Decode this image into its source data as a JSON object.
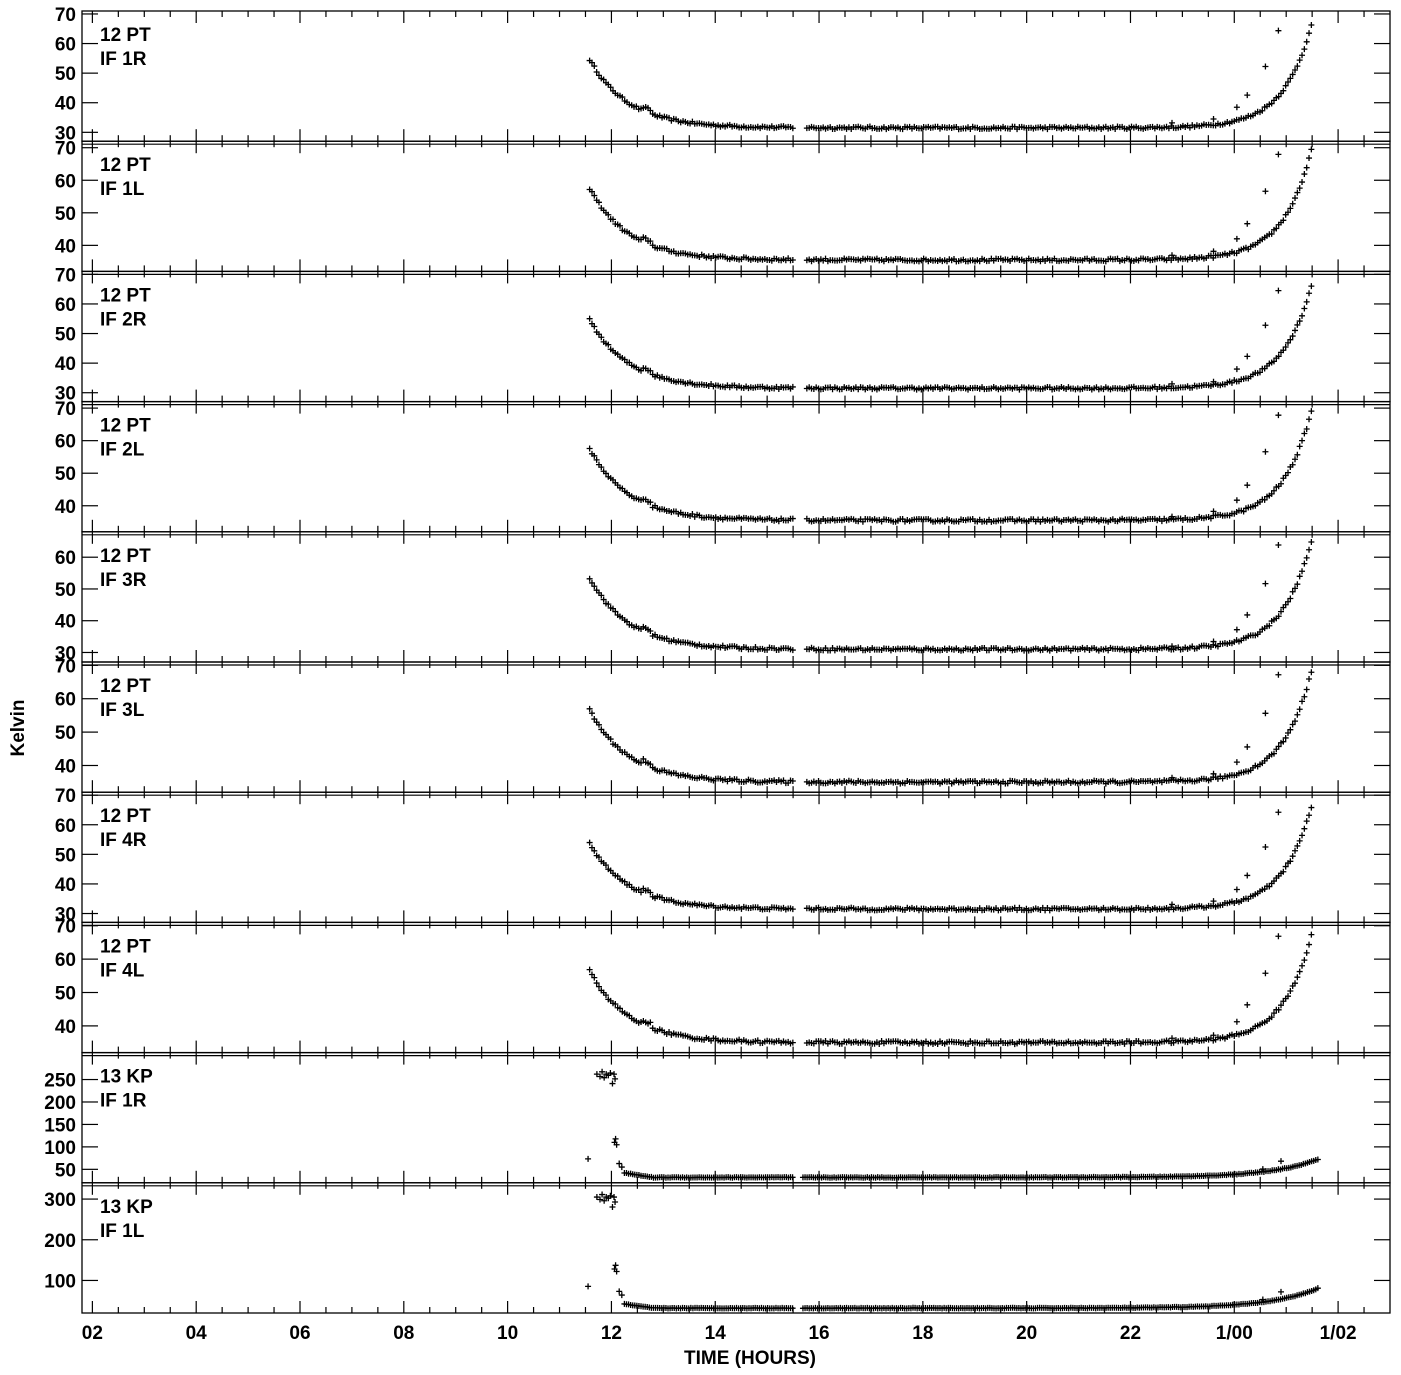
{
  "chart_data": {
    "type": "scatter",
    "title": "",
    "xlabel": "TIME (HOURS)",
    "ylabel": "Kelvin",
    "x_tick_labels": [
      "02",
      "04",
      "06",
      "08",
      "10",
      "12",
      "14",
      "16",
      "18",
      "20",
      "22",
      "1/00",
      "1/02"
    ],
    "x_tick_hours": [
      2,
      4,
      6,
      8,
      10,
      12,
      14,
      16,
      18,
      20,
      22,
      24,
      26
    ],
    "xlim": [
      1.8,
      27.0
    ],
    "marker": "plus",
    "panels": [
      {
        "line1": "12 PT",
        "line2": "IF 1R",
        "ylim": [
          27,
          71
        ],
        "yticks": [
          30,
          40,
          50,
          60,
          70
        ],
        "ytick_labels": [
          "30",
          "40",
          "50",
          "60",
          "70"
        ],
        "profile": "pt",
        "base": 31.5,
        "start": 54,
        "end": 67
      },
      {
        "line1": "12 PT",
        "line2": "IF 1L",
        "ylim": [
          32,
          72
        ],
        "yticks": [
          40,
          50,
          60,
          70
        ],
        "ytick_labels": [
          "40",
          "50",
          "60",
          "70"
        ],
        "profile": "pt",
        "base": 35.5,
        "start": 57,
        "end": 70
      },
      {
        "line1": "12 PT",
        "line2": "IF 2R",
        "ylim": [
          27,
          71
        ],
        "yticks": [
          30,
          40,
          50,
          60,
          70
        ],
        "ytick_labels": [
          "30",
          "40",
          "50",
          "60",
          "70"
        ],
        "profile": "pt",
        "base": 31.5,
        "start": 54,
        "end": 67
      },
      {
        "line1": "12 PT",
        "line2": "IF 2L",
        "ylim": [
          32,
          72
        ],
        "yticks": [
          40,
          50,
          60,
          70
        ],
        "ytick_labels": [
          "40",
          "50",
          "60",
          "70"
        ],
        "profile": "pt",
        "base": 35.5,
        "start": 57,
        "end": 70
      },
      {
        "line1": "12 PT",
        "line2": "IF 3R",
        "ylim": [
          27,
          68
        ],
        "yticks": [
          30,
          40,
          50,
          60
        ],
        "ytick_labels": [
          "30",
          "40",
          "50",
          "60"
        ],
        "profile": "pt",
        "base": 31,
        "start": 53,
        "end": 66
      },
      {
        "line1": "12 PT",
        "line2": "IF 3L",
        "ylim": [
          32,
          71
        ],
        "yticks": [
          40,
          50,
          60,
          70
        ],
        "ytick_labels": [
          "40",
          "50",
          "60",
          "70"
        ],
        "profile": "pt",
        "base": 35,
        "start": 56,
        "end": 69
      },
      {
        "line1": "12 PT",
        "line2": "IF 4R",
        "ylim": [
          27,
          71
        ],
        "yticks": [
          30,
          40,
          50,
          60,
          70
        ],
        "ytick_labels": [
          "30",
          "40",
          "50",
          "60",
          "70"
        ],
        "profile": "pt",
        "base": 31.5,
        "start": 53,
        "end": 67
      },
      {
        "line1": "12 PT",
        "line2": "IF 4L",
        "ylim": [
          32,
          71
        ],
        "yticks": [
          40,
          50,
          60,
          70
        ],
        "ytick_labels": [
          "40",
          "50",
          "60",
          "70"
        ],
        "profile": "pt",
        "base": 35,
        "start": 56,
        "end": 68
      },
      {
        "line1": "13 KP",
        "line2": "IF 1R",
        "ylim": [
          20,
          310
        ],
        "yticks": [
          50,
          100,
          150,
          200,
          250
        ],
        "ytick_labels": [
          "50",
          "100",
          "150",
          "200",
          "250"
        ],
        "profile": "kp",
        "base": 32,
        "spike": 262,
        "end": 72
      },
      {
        "line1": "13 KP",
        "line2": "IF 1L",
        "ylim": [
          20,
          340
        ],
        "yticks": [
          100,
          200,
          300
        ],
        "ytick_labels": [
          "100",
          "200",
          "300"
        ],
        "profile": "kp",
        "base": 32,
        "spike": 305,
        "end": 80
      }
    ]
  }
}
